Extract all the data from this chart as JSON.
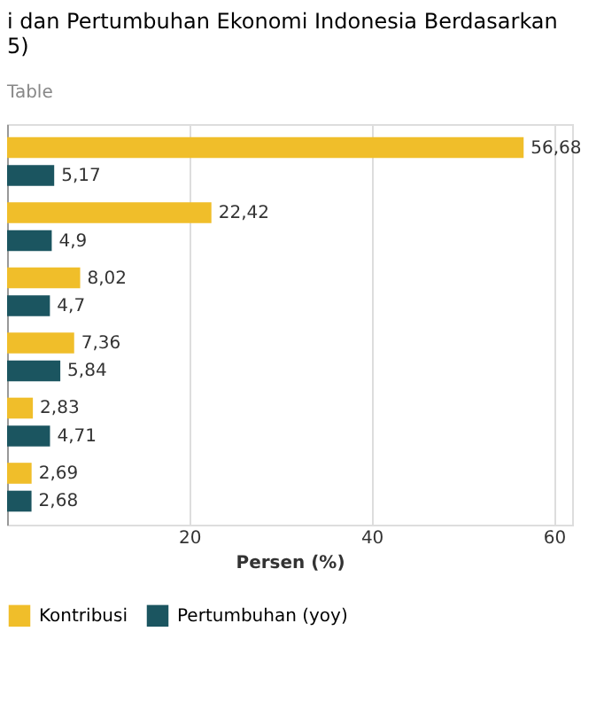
{
  "chart_data": {
    "type": "bar",
    "orientation": "horizontal",
    "title": [
      "i dan Pertumbuhan Ekonomi Indonesia Berdasarkan",
      "5)"
    ],
    "annotations": [
      "Table"
    ],
    "xlabel": "Persen (%)",
    "categories": [
      null,
      null,
      null,
      null,
      null,
      null
    ],
    "series": [
      {
        "name": "Kontribusi",
        "color": "#f0be2a",
        "values": [
          56.68,
          22.42,
          8.02,
          7.36,
          2.83,
          2.69
        ],
        "value_labels": [
          "56,68",
          "22,42",
          "8,02",
          "7,36",
          "2,83",
          "2,69"
        ]
      },
      {
        "name": "Pertumbuhan (yoy)",
        "color": "#1b5560",
        "values": [
          5.17,
          4.9,
          4.7,
          5.84,
          4.71,
          2.68
        ],
        "value_labels": [
          "5,17",
          "4,9",
          "4,7",
          "5,84",
          "4,71",
          "2,68"
        ]
      }
    ],
    "xlim": [
      0,
      62
    ],
    "xticks": [
      20,
      40,
      60
    ],
    "grid": "x",
    "legend": "bottom",
    "tick_labels": "x"
  }
}
